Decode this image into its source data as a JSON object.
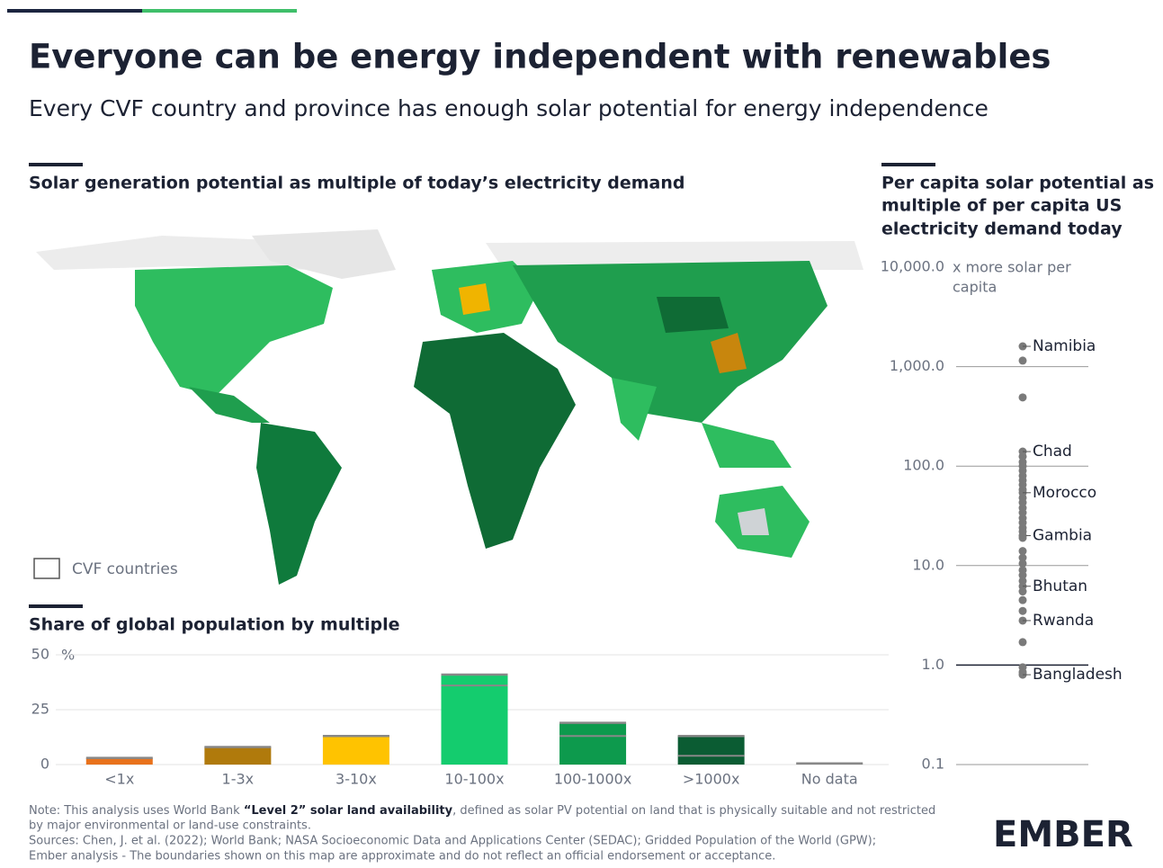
{
  "title": "Everyone can be energy independent with renewables",
  "subtitle": "Every CVF country and province has enough solar potential for energy independence",
  "map": {
    "title": "Solar generation potential as multiple of today’s electricity demand",
    "legend": "CVF countries"
  },
  "chart_data": [
    {
      "type": "bar",
      "title": "Share of global population by multiple",
      "y_unit": "%",
      "categories": [
        "<1x",
        "1-3x",
        "3-10x",
        "10-100x",
        "100-1000x",
        ">1000x",
        "No data"
      ],
      "values": [
        3,
        8,
        13,
        41,
        19,
        13,
        0.5
      ],
      "marker_values": [
        null,
        null,
        null,
        36,
        13,
        4,
        null
      ],
      "colors": [
        "#e8721c",
        "#b07a0c",
        "#ffc300",
        "#14cc6e",
        "#0d9a4d",
        "#0b5c33",
        "#d0d0d0"
      ],
      "ylim": [
        0,
        50
      ],
      "yticks": [
        0,
        25,
        50
      ],
      "grid": true
    },
    {
      "type": "strip",
      "title": [
        "Per capita solar potential as",
        "multiple of per capita US",
        "electricity demand today"
      ],
      "axis_note": [
        "x more solar per",
        "capita"
      ],
      "log_scale": true,
      "color": "#7a7a7a",
      "ylim": [
        0.1,
        10000
      ],
      "yticks": [
        {
          "value": 10000,
          "label": "10,000.0"
        },
        {
          "value": 1000,
          "label": "1,000.0"
        },
        {
          "value": 100,
          "label": "100.0"
        },
        {
          "value": 10,
          "label": "10.0"
        },
        {
          "value": 1,
          "label": "1.0"
        },
        0.1
      ],
      "values": [
        1600,
        1150,
        490,
        140,
        125,
        110,
        100,
        90,
        80,
        72,
        65,
        58,
        54,
        48,
        43,
        38,
        34,
        30,
        27,
        24,
        22,
        20,
        19,
        14,
        12,
        10.5,
        9,
        8,
        7,
        6.2,
        5.5,
        4.5,
        3.5,
        2.8,
        1.7,
        0.95,
        0.85,
        0.8
      ],
      "categories": [
        "Namibia",
        null,
        null,
        "Chad",
        null,
        null,
        null,
        null,
        null,
        null,
        null,
        null,
        "Morocco",
        null,
        null,
        null,
        null,
        null,
        null,
        null,
        null,
        "Gambia",
        null,
        null,
        null,
        null,
        null,
        null,
        null,
        "Bhutan",
        null,
        null,
        null,
        "Rwanda",
        null,
        null,
        null,
        "Bangladesh"
      ],
      "grid": true
    }
  ],
  "note": {
    "parts": [
      "Note: This analysis uses World Bank ",
      "“Level 2” solar land availability",
      ", defined as solar PV potential on land that is physically suitable and not restricted"
    ],
    "lines": [
      "by major environmental or land-use constraints.",
      "Sources: Chen, J. et al. (2022); World Bank; NASA Socioeconomic Data and Applications Center (SEDAC); Gridded Population of the World (GPW);",
      "Ember analysis - The boundaries shown on this map are approximate and do not reflect an official endorsement or acceptance."
    ]
  },
  "logo": "EMBER"
}
